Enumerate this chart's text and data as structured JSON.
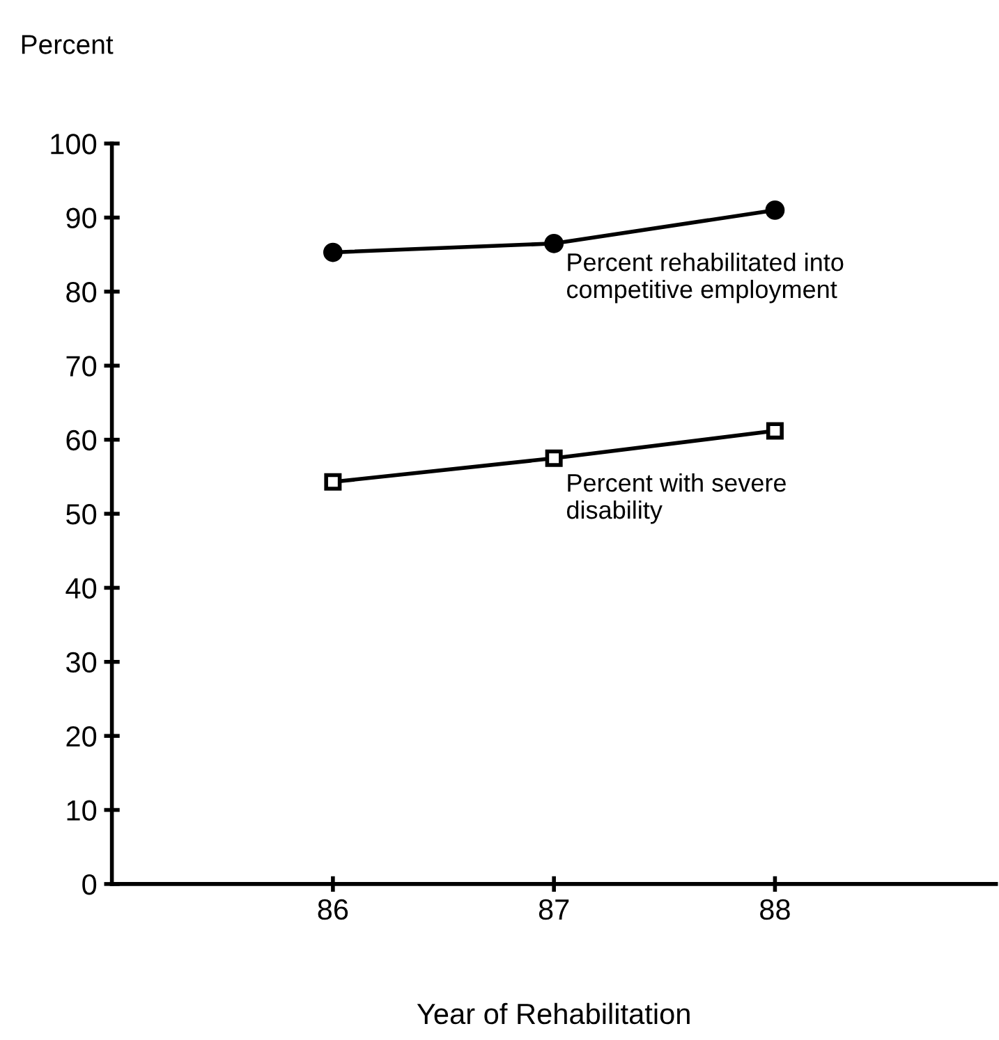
{
  "chart_data": {
    "type": "line",
    "ylabel": "Percent",
    "xlabel": "Year of Rehabilitation",
    "x": [
      86,
      87,
      88
    ],
    "series": [
      {
        "name": "Percent rehabilitated into\ncompetitive employment",
        "color": "#000000",
        "values": [
          85.3,
          86.5,
          91.0
        ],
        "marker": "circle"
      },
      {
        "name": "Percent with severe\ndisability",
        "color": "#000000",
        "values": [
          54.3,
          57.5,
          61.2
        ],
        "marker": "square"
      }
    ],
    "xlim": [
      85,
      89
    ],
    "xticks": [
      86,
      87,
      88
    ],
    "ylim": [
      0,
      100
    ],
    "yticks": [
      0,
      10,
      20,
      30,
      40,
      50,
      60,
      70,
      80,
      90,
      100
    ],
    "grid": false,
    "legend": false,
    "line_style": "solid"
  }
}
